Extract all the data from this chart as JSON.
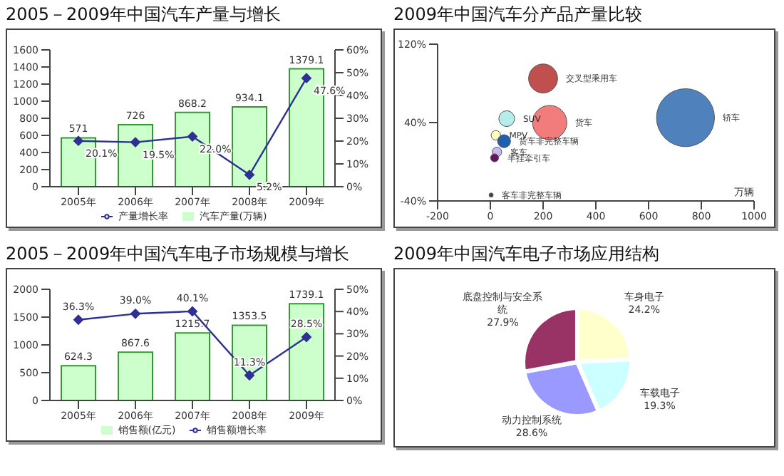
{
  "chart_data": [
    {
      "type": "bar",
      "title": "2005－2009年中国汽车产量与增长",
      "categories": [
        "2005年",
        "2006年",
        "2007年",
        "2008年",
        "2009年"
      ],
      "series": [
        {
          "name": "汽车产量(万辆)",
          "type": "bar",
          "color": "#ccffcc",
          "values": [
            571,
            726,
            868.2,
            934.1,
            1379.1
          ],
          "value_labels": [
            "571",
            "726",
            "868.2",
            "934.1",
            "1379.1"
          ]
        },
        {
          "name": "产量增长率",
          "type": "line",
          "axis": "y2",
          "color": "#2e3192",
          "values": [
            20.1,
            19.5,
            22.0,
            5.2,
            47.6
          ],
          "value_labels": [
            "20.1%",
            "19.5%",
            "22.0%",
            "5.2%",
            "47.6%"
          ]
        }
      ],
      "ylim": [
        0,
        1600
      ],
      "yticks": [
        0,
        200,
        400,
        600,
        800,
        1000,
        1200,
        1400,
        1600
      ],
      "y2lim": [
        0,
        60
      ],
      "y2ticks": [
        {
          "value": 0,
          "label": "0%"
        },
        {
          "value": 10,
          "label": "10%"
        },
        {
          "value": 20,
          "label": "20%"
        },
        {
          "value": 30,
          "label": "30%"
        },
        {
          "value": 40,
          "label": "40%"
        },
        {
          "value": 50,
          "label": "50%"
        },
        {
          "value": 60,
          "label": "60%"
        }
      ],
      "legend": "bottom",
      "marker": "diamond"
    },
    {
      "type": "bubble",
      "title": "2009年中国汽车分产品产量比较",
      "xlabel": "万辆",
      "series": [
        {
          "name": "交叉型乘用车",
          "color": "#c0504d",
          "x": [
            200
          ],
          "values": [
            85
          ],
          "sizes": [
            0.25
          ]
        },
        {
          "name": "轿车",
          "color": "#4f81bd",
          "x": [
            740
          ],
          "values": [
            45
          ],
          "sizes": [
            1
          ]
        },
        {
          "name": "货车",
          "color": "#f27c7c",
          "x": [
            225
          ],
          "values": [
            40
          ],
          "sizes": [
            0.35
          ]
        },
        {
          "name": "SUV",
          "color": "#b7ecec",
          "x": [
            62
          ],
          "values": [
            44
          ],
          "sizes": [
            0.074
          ]
        },
        {
          "name": "MPV",
          "color": "#ffffc0",
          "x": [
            21
          ],
          "values": [
            27
          ],
          "sizes": [
            0.027
          ]
        },
        {
          "name": "货车非完整车辆",
          "color": "#1f5fb0",
          "x": [
            52
          ],
          "values": [
            21
          ],
          "sizes": [
            0.05
          ]
        },
        {
          "name": "客车",
          "color": "#c8b8f0",
          "x": [
            25
          ],
          "values": [
            10
          ],
          "sizes": [
            0.027
          ]
        },
        {
          "name": "半挂牵引车",
          "color": "#6a1060",
          "x": [
            16
          ],
          "values": [
            4
          ],
          "sizes": [
            0.019
          ]
        },
        {
          "name": "客车非完整车辆",
          "color": "#444444",
          "x": [
            3
          ],
          "values": [
            -34
          ],
          "sizes": [
            0.005
          ]
        }
      ],
      "xlim": [
        -200,
        1000
      ],
      "xticks": [
        -200,
        0,
        200,
        400,
        600,
        800,
        1000
      ],
      "ylim": [
        -40,
        120
      ],
      "yticks": [
        {
          "value": -40,
          "label": "-40%"
        },
        {
          "value": 40,
          "label": "40%"
        },
        {
          "value": 120,
          "label": "120%"
        }
      ]
    },
    {
      "type": "bar",
      "title": "2005－2009年中国汽车电子市场规模与增长",
      "categories": [
        "2005年",
        "2006年",
        "2007年",
        "2008年",
        "2009年"
      ],
      "series": [
        {
          "name": "销售额(亿元)",
          "type": "bar",
          "color": "#ccffcc",
          "values": [
            624.3,
            867.6,
            1215.7,
            1353.5,
            1739.1
          ],
          "value_labels": [
            "624.3",
            "867.6",
            "1215.7",
            "1353.5",
            "1739.1"
          ]
        },
        {
          "name": "销售额增长率",
          "type": "line",
          "axis": "y2",
          "color": "#2e3192",
          "values": [
            36.3,
            39.0,
            40.1,
            11.3,
            28.5
          ],
          "value_labels": [
            "36.3%",
            "39.0%",
            "40.1%",
            "11.3%",
            "28.5%"
          ]
        }
      ],
      "ylim": [
        0,
        2000
      ],
      "yticks": [
        0,
        500,
        1000,
        1500,
        2000
      ],
      "y2lim": [
        0,
        50
      ],
      "y2ticks": [
        {
          "value": 0,
          "label": "0%"
        },
        {
          "value": 10,
          "label": "10%"
        },
        {
          "value": 20,
          "label": "20%"
        },
        {
          "value": 30,
          "label": "30%"
        },
        {
          "value": 40,
          "label": "40%"
        },
        {
          "value": 50,
          "label": "50%"
        }
      ],
      "legend": "bottom",
      "marker": "diamond"
    },
    {
      "type": "pie",
      "title": "2009年中国汽车电子市场应用结构",
      "categories": [
        "车身电子",
        "车载电子",
        "动力控制系统",
        "底盘控制与安全系统"
      ],
      "values": [
        24.2,
        19.3,
        28.6,
        27.9
      ],
      "colors": [
        "#ffffcc",
        "#ccffff",
        "#9999ff",
        "#993366"
      ],
      "value_labels": [
        "24.2%",
        "19.3%",
        "28.6%",
        "27.9%"
      ]
    }
  ]
}
